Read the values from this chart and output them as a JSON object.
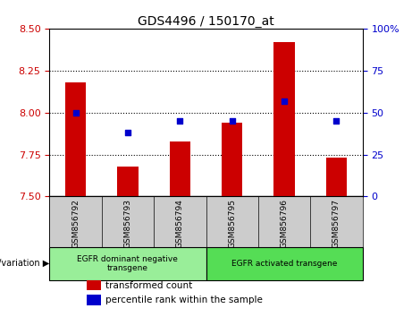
{
  "title": "GDS4496 / 150170_at",
  "samples": [
    "GSM856792",
    "GSM856793",
    "GSM856794",
    "GSM856795",
    "GSM856796",
    "GSM856797"
  ],
  "bar_values": [
    8.18,
    7.68,
    7.83,
    7.94,
    8.42,
    7.73
  ],
  "percentile_values": [
    50,
    38,
    45,
    45,
    57,
    45
  ],
  "bar_color": "#cc0000",
  "dot_color": "#0000cc",
  "ylim_left": [
    7.5,
    8.5
  ],
  "ylim_right": [
    0,
    100
  ],
  "yticks_left": [
    7.5,
    7.75,
    8.0,
    8.25,
    8.5
  ],
  "yticks_right": [
    0,
    25,
    50,
    75,
    100
  ],
  "grid_values": [
    7.75,
    8.0,
    8.25
  ],
  "groups": [
    {
      "label": "EGFR dominant negative\ntransgene",
      "samples_idx": [
        0,
        1,
        2
      ],
      "color": "#99ee99"
    },
    {
      "label": "EGFR activated transgene",
      "samples_idx": [
        3,
        4,
        5
      ],
      "color": "#55dd55"
    }
  ],
  "legend_items": [
    {
      "color": "#cc0000",
      "label": "transformed count"
    },
    {
      "color": "#0000cc",
      "label": "percentile rank within the sample"
    }
  ],
  "bar_width": 0.4,
  "left_axis_color": "#cc0000",
  "right_axis_color": "#0000cc",
  "sample_box_color": "#cccccc",
  "plot_bg_color": "#ffffff"
}
